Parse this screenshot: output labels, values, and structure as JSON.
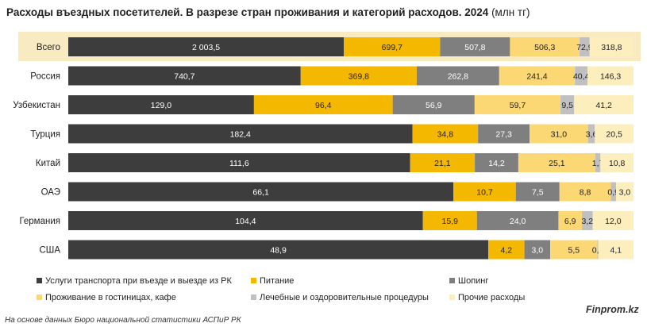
{
  "title": {
    "main": "Расходы въездных посетителей. В разрезе стран проживания и категорий расходов. 2024",
    "unit": "(млн тг)"
  },
  "source": "На основе данных Бюро национальной статистики АСПиР РК",
  "brand": "Finprom.kz",
  "highlight_color": "#f8ebc2",
  "chart_data": {
    "type": "bar",
    "orientation": "horizontal",
    "stacked": true,
    "normalized": true,
    "categories": [
      "Всего",
      "Россия",
      "Узбекистан",
      "Турция",
      "Китай",
      "ОАЭ",
      "Германия",
      "США"
    ],
    "series": [
      {
        "name": "Услуги транспорта при въезде и выезде из РК",
        "color": "#3d3d3d",
        "label_color": "#ffffff",
        "values": [
          2003.5,
          740.7,
          129.0,
          182.4,
          111.6,
          66.1,
          104.4,
          48.9
        ],
        "labels": [
          "2 003,5",
          "740,7",
          "129,0",
          "182,4",
          "111,6",
          "66,1",
          "104,4",
          "48,9"
        ]
      },
      {
        "name": "Питание",
        "color": "#f5b800",
        "label_color": "#222222",
        "values": [
          699.7,
          369.8,
          96.4,
          34.8,
          21.1,
          10.7,
          15.9,
          4.2
        ],
        "labels": [
          "699,7",
          "369,8",
          "96,4",
          "34,8",
          "21,1",
          "10,7",
          "15,9",
          "4,2"
        ]
      },
      {
        "name": "Шопинг",
        "color": "#7f7f7f",
        "label_color": "#ffffff",
        "values": [
          507.8,
          262.8,
          56.9,
          27.3,
          14.2,
          7.5,
          24.0,
          3.0
        ],
        "labels": [
          "507,8",
          "262,8",
          "56,9",
          "27,3",
          "14,2",
          "7,5",
          "24,0",
          "3,0"
        ]
      },
      {
        "name": "Проживание в гостиницах, кафе",
        "color": "#fcd874",
        "label_color": "#222222",
        "values": [
          506.3,
          241.4,
          59.7,
          31.0,
          25.1,
          8.8,
          6.9,
          5.5
        ],
        "labels": [
          "506,3",
          "241,4",
          "59,7",
          "31,0",
          "25,1",
          "8,8",
          "6,9",
          "5,5"
        ]
      },
      {
        "name": "Лечебные и оздоровительные процедуры",
        "color": "#c0c0c0",
        "label_color": "#222222",
        "values": [
          72.9,
          40.4,
          9.5,
          3.6,
          1.7,
          0.9,
          3.2,
          0.1
        ],
        "labels": [
          "72,9",
          "40,4",
          "9,5",
          "3,6",
          "1,7",
          "0,9",
          "3,2",
          "0,1"
        ]
      },
      {
        "name": "Прочие расходы",
        "color": "#fdeebe",
        "label_color": "#222222",
        "values": [
          318.8,
          146.3,
          41.2,
          20.5,
          10.8,
          3.0,
          12.0,
          4.1
        ],
        "labels": [
          "318,8",
          "146,3",
          "41,2",
          "20,5",
          "10,8",
          "3,0",
          "12,0",
          "4,1"
        ]
      }
    ],
    "legend_position": "bottom",
    "grid": false
  }
}
